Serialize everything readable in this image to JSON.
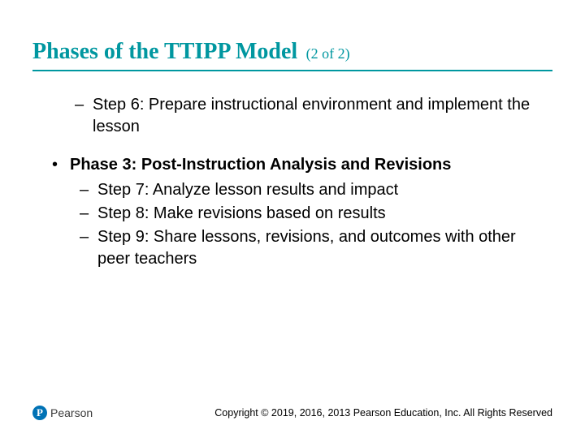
{
  "colors": {
    "accent": "#0097a0",
    "text": "#000000",
    "logo_bg": "#0072b5",
    "logo_text_color": "#4a4a4a"
  },
  "title": {
    "main": "Phases of the TTIPP Model",
    "suffix": "(2 of 2)"
  },
  "step6": "Step 6: Prepare instructional environment and implement the lesson",
  "phase3": {
    "label": "Phase 3: Post-Instruction Analysis and Revisions",
    "steps": {
      "s7": "Step 7: Analyze lesson results and impact",
      "s8": "Step 8: Make revisions based on results",
      "s9": "Step 9: Share lessons, revisions, and outcomes with other peer teachers"
    }
  },
  "footer": {
    "logo_mark": "P",
    "logo_text": "Pearson",
    "copyright": "Copyright © 2019, 2016, 2013 Pearson Education, Inc. All Rights Reserved"
  }
}
